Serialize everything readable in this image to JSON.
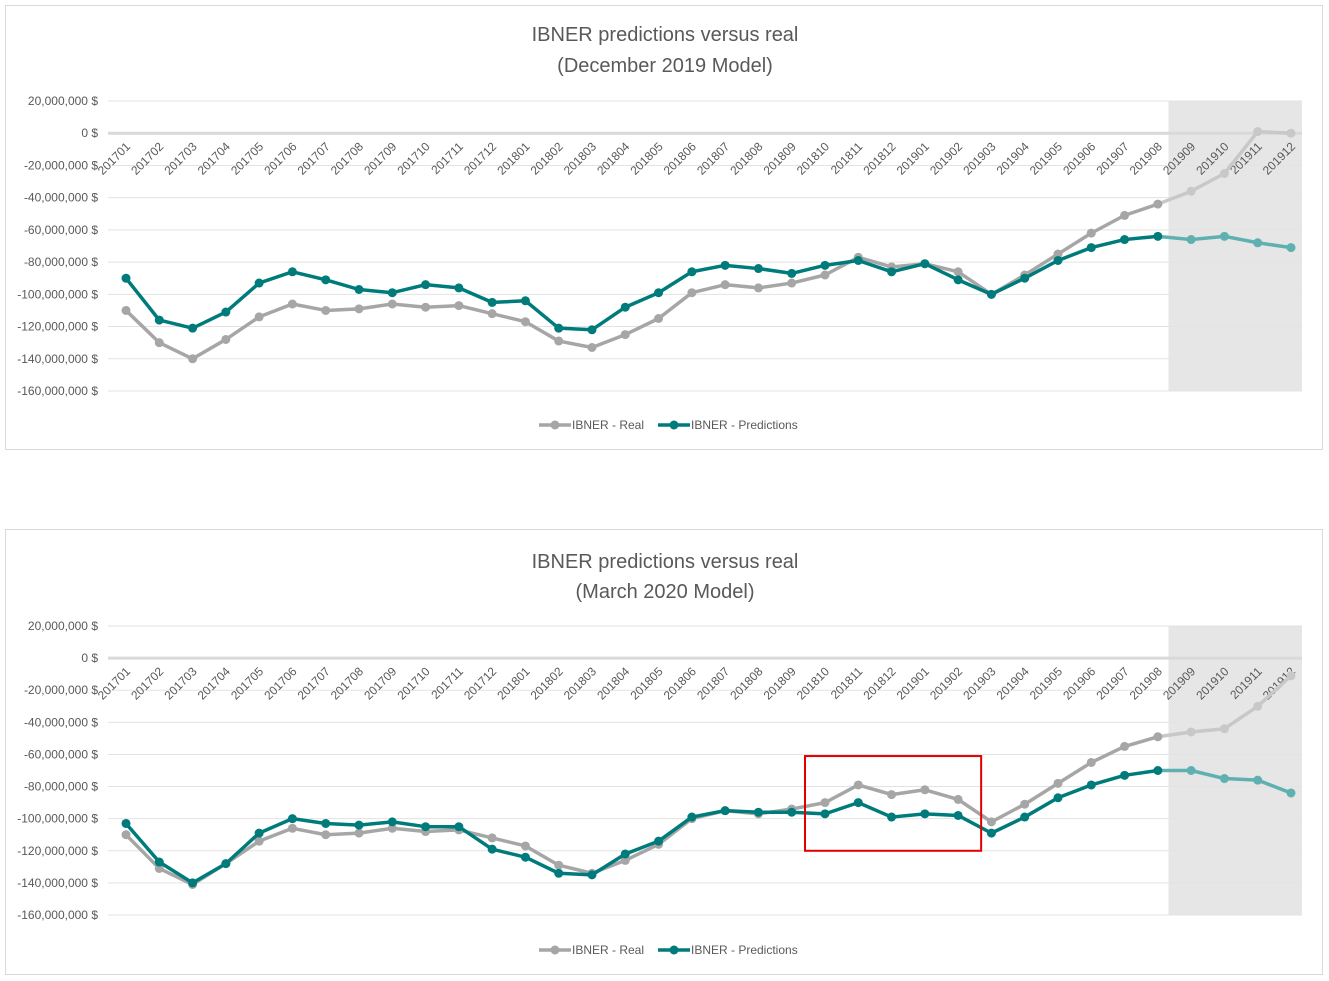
{
  "chart_data": [
    {
      "type": "line",
      "title": "IBNER predictions versus real",
      "subtitle": "(December 2019 Model)",
      "xlabel": "",
      "ylabel": "",
      "ylim": [
        -160000000,
        20000000
      ],
      "y_ticks": [
        "20,000,000 $",
        "0 $",
        "-20,000,000 $",
        "-40,000,000 $",
        "-60,000,000 $",
        "-80,000,000 $",
        "-100,000,000 $",
        "-120,000,000 $",
        "-140,000,000 $",
        "-160,000,000 $"
      ],
      "y_tick_values": [
        20000000,
        0,
        -20000000,
        -40000000,
        -60000000,
        -80000000,
        -100000000,
        -120000000,
        -140000000,
        -160000000
      ],
      "categories": [
        "201701",
        "201702",
        "201703",
        "201704",
        "201705",
        "201706",
        "201707",
        "201708",
        "201709",
        "201710",
        "201711",
        "201712",
        "201801",
        "201802",
        "201803",
        "201804",
        "201805",
        "201806",
        "201807",
        "201808",
        "201809",
        "201810",
        "201811",
        "201812",
        "201901",
        "201902",
        "201903",
        "201904",
        "201905",
        "201906",
        "201907",
        "201908",
        "201909",
        "201910",
        "201911",
        "201912"
      ],
      "shaded_from_category": "201909",
      "legend_position": "bottom",
      "grid": true,
      "series": [
        {
          "name": "IBNER - Real",
          "color": "#a6a6a6",
          "values": [
            -110000000,
            -130000000,
            -140000000,
            -128000000,
            -114000000,
            -106000000,
            -110000000,
            -109000000,
            -106000000,
            -108000000,
            -107000000,
            -112000000,
            -117000000,
            -129000000,
            -133000000,
            -125000000,
            -115000000,
            -99000000,
            -94000000,
            -96000000,
            -93000000,
            -88000000,
            -77000000,
            -83000000,
            -81000000,
            -86000000,
            -100000000,
            -88000000,
            -75000000,
            -62000000,
            -51000000,
            -44000000,
            -36000000,
            -25000000,
            1000000,
            0
          ]
        },
        {
          "name": "IBNER - Predictions",
          "color": "#007b7b",
          "values": [
            -90000000,
            -116000000,
            -121000000,
            -111000000,
            -93000000,
            -86000000,
            -91000000,
            -97000000,
            -99000000,
            -94000000,
            -96000000,
            -105000000,
            -104000000,
            -121000000,
            -122000000,
            -108000000,
            -99000000,
            -86000000,
            -82000000,
            -84000000,
            -87000000,
            -82000000,
            -79000000,
            -86000000,
            -81000000,
            -91000000,
            -100000000,
            -90000000,
            -79000000,
            -71000000,
            -66000000,
            -64000000,
            -66000000,
            -64000000,
            -68000000,
            -71000000
          ]
        }
      ]
    },
    {
      "type": "line",
      "title": "IBNER predictions versus real",
      "subtitle": "(March 2020 Model)",
      "xlabel": "",
      "ylabel": "",
      "ylim": [
        -160000000,
        20000000
      ],
      "y_ticks": [
        "20,000,000 $",
        "0 $",
        "-20,000,000 $",
        "-40,000,000 $",
        "-60,000,000 $",
        "-80,000,000 $",
        "-100,000,000 $",
        "-120,000,000 $",
        "-140,000,000 $",
        "-160,000,000 $"
      ],
      "y_tick_values": [
        20000000,
        0,
        -20000000,
        -40000000,
        -60000000,
        -80000000,
        -100000000,
        -120000000,
        -140000000,
        -160000000
      ],
      "categories": [
        "201701",
        "201702",
        "201703",
        "201704",
        "201705",
        "201706",
        "201707",
        "201708",
        "201709",
        "201710",
        "201711",
        "201712",
        "201801",
        "201802",
        "201803",
        "201804",
        "201805",
        "201806",
        "201807",
        "201808",
        "201809",
        "201810",
        "201811",
        "201812",
        "201901",
        "201902",
        "201903",
        "201904",
        "201905",
        "201906",
        "201907",
        "201908",
        "201909",
        "201910",
        "201911",
        "201912"
      ],
      "shaded_from_category": "201909",
      "highlight_box": {
        "from_category": "201810",
        "to_category": "201902",
        "y_range": [
          -120000000,
          -61000000
        ],
        "color": "#e00000"
      },
      "legend_position": "bottom",
      "grid": true,
      "series": [
        {
          "name": "IBNER - Real",
          "color": "#a6a6a6",
          "values": [
            -110000000,
            -131000000,
            -141000000,
            -128000000,
            -114000000,
            -106000000,
            -110000000,
            -109000000,
            -106000000,
            -108000000,
            -107000000,
            -112000000,
            -117000000,
            -129000000,
            -134000000,
            -126000000,
            -116000000,
            -100000000,
            -95000000,
            -97000000,
            -94000000,
            -90000000,
            -79000000,
            -85000000,
            -82000000,
            -88000000,
            -102000000,
            -91000000,
            -78000000,
            -65000000,
            -55000000,
            -49000000,
            -46000000,
            -44000000,
            -30000000,
            -11000000
          ]
        },
        {
          "name": "IBNER - Predictions",
          "color": "#007b7b",
          "values": [
            -103000000,
            -127000000,
            -140000000,
            -128000000,
            -109000000,
            -100000000,
            -103000000,
            -104000000,
            -102000000,
            -105000000,
            -105000000,
            -119000000,
            -124000000,
            -134000000,
            -135000000,
            -122000000,
            -114000000,
            -99000000,
            -95000000,
            -96000000,
            -96000000,
            -97000000,
            -90000000,
            -99000000,
            -97000000,
            -98000000,
            -109000000,
            -99000000,
            -87000000,
            -79000000,
            -73000000,
            -70000000,
            -70000000,
            -75000000,
            -76000000,
            -84000000
          ]
        }
      ]
    }
  ]
}
